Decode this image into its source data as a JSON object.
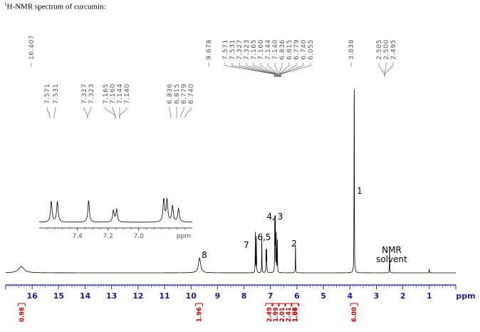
{
  "title": {
    "superscript": "1",
    "text": "H-NMR spectrum of curcumin:"
  },
  "chart_data": {
    "type": "line",
    "title": "H-NMR spectrum of curcumin",
    "xlabel": "ppm",
    "xlim": [
      17,
      0
    ],
    "x_ticks": [
      16,
      15,
      14,
      13,
      12,
      11,
      10,
      9,
      8,
      7,
      6,
      5,
      4,
      3,
      2,
      1
    ],
    "peak_shift_labels": {
      "main": [
        "16.407",
        "9.678",
        "7.571",
        "7.531",
        "7.327",
        "7.323",
        "7.165",
        "7.160",
        "7.144",
        "7.140",
        "6.836",
        "6.815",
        "6.779",
        "6.740",
        "6.055",
        "3.838",
        "2.505",
        "2.500",
        "2.495"
      ],
      "inset": [
        "7.571",
        "7.531",
        "7.327",
        "7.323",
        "7.165",
        "7.160",
        "7.144",
        "7.140",
        "6.836",
        "6.815",
        "6.779",
        "6.740"
      ]
    },
    "peaks": [
      {
        "ppm": 16.407,
        "height": 0.03
      },
      {
        "ppm": 9.678,
        "height": 0.07
      },
      {
        "ppm": 7.571,
        "height": 0.19
      },
      {
        "ppm": 7.531,
        "height": 0.19
      },
      {
        "ppm": 7.327,
        "height": 0.18
      },
      {
        "ppm": 7.165,
        "height": 0.11
      },
      {
        "ppm": 7.144,
        "height": 0.11
      },
      {
        "ppm": 6.836,
        "height": 0.26
      },
      {
        "ppm": 6.815,
        "height": 0.25
      },
      {
        "ppm": 6.779,
        "height": 0.18
      },
      {
        "ppm": 6.74,
        "height": 0.16
      },
      {
        "ppm": 6.055,
        "height": 0.14
      },
      {
        "ppm": 3.838,
        "height": 1.0
      },
      {
        "ppm": 2.5,
        "height": 0.12
      },
      {
        "ppm": 1.0,
        "height": 0.02
      }
    ],
    "assignments": [
      {
        "label": "8",
        "ppm": 9.678
      },
      {
        "label": "7",
        "ppm": 7.9
      },
      {
        "label": "6,5",
        "ppm": 7.2
      },
      {
        "label": "4, 3",
        "ppm": 6.75
      },
      {
        "label": "2",
        "ppm": 6.1
      },
      {
        "label": "1",
        "ppm": 3.45
      },
      {
        "label": "NMR",
        "ppm": 2.3
      },
      {
        "label": "solvent",
        "ppm": 2.3
      }
    ],
    "integrals": [
      {
        "ppm": 16.4,
        "value": "0.98"
      },
      {
        "ppm": 9.7,
        "value": "1.96"
      },
      {
        "ppm": 7.57,
        "value": "2.49"
      },
      {
        "ppm": 7.33,
        "value": "1.99"
      },
      {
        "ppm": 7.15,
        "value": "2.01"
      },
      {
        "ppm": 6.82,
        "value": "2.41"
      },
      {
        "ppm": 6.75,
        "value": "1.97"
      },
      {
        "ppm": 6.06,
        "value": "1.06"
      },
      {
        "ppm": 3.84,
        "value": "6.00"
      }
    ],
    "inset": {
      "xlabel": "ppm",
      "xlim": [
        7.65,
        6.65
      ],
      "x_ticks": [
        7.4,
        7.2,
        7.0
      ],
      "peaks": [
        {
          "ppm": 7.571,
          "height": 0.9
        },
        {
          "ppm": 7.531,
          "height": 0.9
        },
        {
          "ppm": 7.327,
          "height": 0.95
        },
        {
          "ppm": 7.165,
          "height": 0.5
        },
        {
          "ppm": 7.144,
          "height": 0.55
        },
        {
          "ppm": 6.836,
          "height": 1.0
        },
        {
          "ppm": 6.815,
          "height": 0.95
        },
        {
          "ppm": 6.779,
          "height": 0.7
        },
        {
          "ppm": 6.74,
          "height": 0.6
        }
      ]
    },
    "colors": {
      "spectrum": "#000000",
      "axis": "#1a1ab0",
      "integral": "#d00000",
      "labels": "#555555"
    }
  }
}
